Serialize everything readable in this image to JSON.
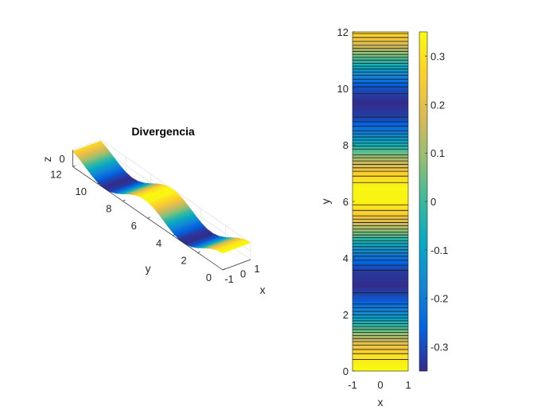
{
  "chart_data": [
    {
      "type": "surface",
      "title": "Divergencia",
      "xlabel": "x",
      "ylabel": "y",
      "zlabel": "z",
      "xlim": [
        -1,
        1
      ],
      "ylim": [
        0,
        12
      ],
      "zlim": [
        -0.35,
        0.35
      ],
      "xticks": [
        "-1",
        "0",
        "1"
      ],
      "yticks": [
        "0",
        "2",
        "4",
        "6",
        "8",
        "10",
        "12"
      ],
      "zticks": [
        "0"
      ],
      "colormap": "parula",
      "y": [
        0,
        0.5,
        1,
        1.5,
        2,
        2.5,
        3,
        3.5,
        4,
        4.5,
        5,
        5.5,
        6,
        6.5,
        7,
        7.5,
        8,
        8.5,
        9,
        9.5,
        10,
        10.5,
        11,
        11.5,
        12
      ],
      "z": [
        0.35,
        0.307,
        0.189,
        0.025,
        -0.146,
        -0.28,
        -0.346,
        -0.328,
        -0.229,
        -0.074,
        0.099,
        0.248,
        0.336,
        0.341,
        0.264,
        0.121,
        -0.051,
        -0.21,
        -0.319,
        -0.349,
        -0.294,
        -0.166,
        0.002,
        0.169,
        0.295
      ]
    },
    {
      "type": "contour",
      "xlabel": "x",
      "ylabel": "y",
      "xlim": [
        -1,
        1
      ],
      "ylim": [
        0,
        12
      ],
      "xticks": [
        "-1",
        "0",
        "1"
      ],
      "yticks": [
        "0",
        "2",
        "4",
        "6",
        "8",
        "10",
        "12"
      ],
      "colorbar": {
        "ticks": [
          "-0.3",
          "-0.2",
          "-0.1",
          "0",
          "0.1",
          "0.2",
          "0.3"
        ],
        "range": [
          -0.35,
          0.35
        ]
      }
    }
  ]
}
